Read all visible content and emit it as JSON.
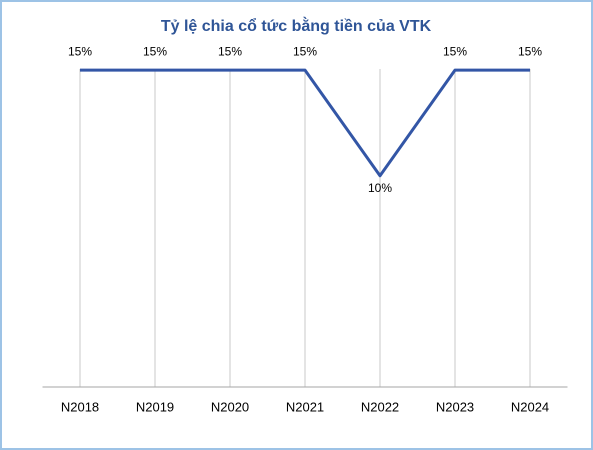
{
  "chart_data": {
    "type": "line",
    "title": "Tỷ lệ chia cổ tức bằng tiền của VTK",
    "categories": [
      "N2018",
      "N2019",
      "N2020",
      "N2021",
      "N2022",
      "N2023",
      "N2024"
    ],
    "series": [
      {
        "name": "Tỷ lệ chia cổ tức",
        "color": "#3356a6",
        "values": [
          15,
          15,
          15,
          15,
          10,
          15,
          15
        ],
        "value_labels": [
          "15%",
          "15%",
          "15%",
          "15%",
          "10%",
          "15%",
          "15%"
        ]
      }
    ],
    "ylim": [
      0,
      16
    ],
    "grid": true
  }
}
